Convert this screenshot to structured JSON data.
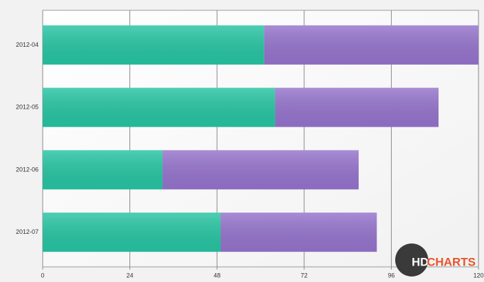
{
  "chart_data": {
    "type": "stacked-bar-horizontal",
    "categories": [
      "2012-04",
      "2012-05",
      "2012-06",
      "2012-07"
    ],
    "series": [
      {
        "color": "#27c4a2",
        "values": [
          61,
          64,
          33,
          49
        ]
      },
      {
        "color": "#9573cc",
        "values": [
          59,
          45,
          54,
          43
        ]
      }
    ],
    "xlim": [
      0,
      120
    ],
    "xticks": [
      0,
      24,
      48,
      72,
      96,
      120
    ],
    "grid": true
  },
  "watermark": {
    "prefix": "HD",
    "text": "CHARTS"
  }
}
